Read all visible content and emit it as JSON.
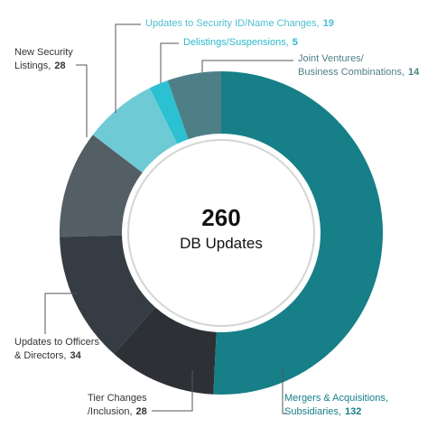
{
  "chart_data": {
    "type": "donut",
    "total": 260,
    "center_label": "DB Updates",
    "series": [
      {
        "name": [
          "Mergers & Acquisitions,",
          "Subsidiaries,"
        ],
        "color": "#167f87",
        "label_color": "#167f87",
        "values": [
          132
        ]
      },
      {
        "name": [
          "Tier Changes",
          "/Inclusion,"
        ],
        "color": "#2d3135",
        "label_color": "#333333",
        "values": [
          28
        ]
      },
      {
        "name": [
          "Updates to Officers",
          "& Directors,"
        ],
        "color": "#363c43",
        "label_color": "#333333",
        "values": [
          34
        ]
      },
      {
        "name": [
          "New Security",
          "Listings,"
        ],
        "color": "#545e65",
        "label_color": "#333333",
        "values": [
          28
        ]
      },
      {
        "name": [
          "Updates to Security ID/Name Changes,"
        ],
        "color": "#6ecbd6",
        "label_color": "#4dbfd0",
        "values": [
          19
        ]
      },
      {
        "name": [
          "Delistings/Suspensions,"
        ],
        "color": "#2bc1d3",
        "label_color": "#2bb9cc",
        "values": [
          5
        ]
      },
      {
        "name": [
          "Joint Ventures/",
          "Business Combinations,"
        ],
        "color": "#4f7f86",
        "label_color": "#4f7f86",
        "values": [
          14
        ]
      }
    ]
  }
}
